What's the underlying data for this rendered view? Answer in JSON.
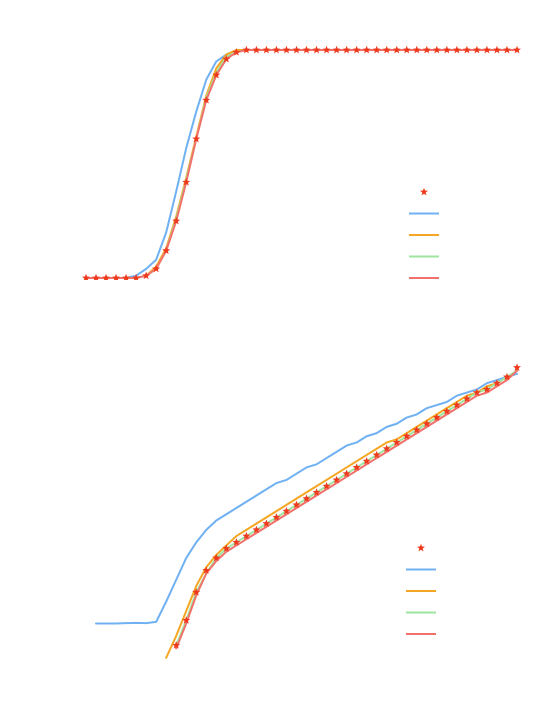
{
  "colors": {
    "reference_markers": "#ee3a1c",
    "series_blue": "#6fb1f2",
    "series_orange": "#f5a623",
    "series_green": "#9ee6a0",
    "series_red": "#f2706a",
    "background": "#ffffff"
  },
  "chart_data": [
    {
      "type": "line",
      "title": "",
      "xlabel": "",
      "ylabel": "",
      "xlim": [
        0,
        43
      ],
      "ylim": [
        0,
        1
      ],
      "grid": false,
      "legend": {
        "placement": "center-right",
        "entries": [
          {
            "marker": "star",
            "color": "#ee3a1c"
          },
          {
            "marker": "line",
            "color": "#6fb1f2"
          },
          {
            "marker": "line",
            "color": "#f5a623"
          },
          {
            "marker": "line",
            "color": "#9ee6a0"
          },
          {
            "marker": "line",
            "color": "#f2706a"
          }
        ]
      },
      "x": [
        0,
        1,
        2,
        3,
        4,
        5,
        6,
        7,
        8,
        9,
        10,
        11,
        12,
        13,
        14,
        15,
        16,
        17,
        18,
        19,
        20,
        21,
        22,
        23,
        24,
        25,
        26,
        27,
        28,
        29,
        30,
        31,
        32,
        33,
        34,
        35,
        36,
        37,
        38,
        39,
        40,
        41,
        42,
        43
      ],
      "series": [
        {
          "style": "stars",
          "color": "#ee3a1c",
          "values": [
            0,
            0,
            0,
            0,
            0,
            0,
            0.01,
            0.04,
            0.12,
            0.25,
            0.42,
            0.61,
            0.78,
            0.89,
            0.96,
            0.99,
            1,
            1,
            1,
            1,
            1,
            1,
            1,
            1,
            1,
            1,
            1,
            1,
            1,
            1,
            1,
            1,
            1,
            1,
            1,
            1,
            1,
            1,
            1,
            1,
            1,
            1,
            1,
            1
          ]
        },
        {
          "style": "line",
          "color": "#6fb1f2",
          "values": [
            0,
            0,
            0,
            0,
            0,
            0.01,
            0.04,
            0.08,
            0.2,
            0.38,
            0.57,
            0.73,
            0.87,
            0.95,
            0.98,
            1,
            1,
            1,
            1,
            1,
            1,
            1,
            1,
            1,
            1,
            1,
            1,
            1,
            1,
            1,
            1,
            1,
            1,
            1,
            1,
            1,
            1,
            1,
            1,
            1,
            1,
            1,
            1,
            1
          ]
        },
        {
          "style": "line",
          "color": "#f5a623",
          "values": [
            0,
            0,
            0,
            0,
            0,
            0,
            0.01,
            0.05,
            0.13,
            0.27,
            0.44,
            0.62,
            0.8,
            0.92,
            0.98,
            1,
            1,
            1,
            1,
            1,
            1,
            1,
            1,
            1,
            1,
            1,
            1,
            1,
            1,
            1,
            1,
            1,
            1,
            1,
            1,
            1,
            1,
            1,
            1,
            1,
            1,
            1,
            1,
            1
          ]
        },
        {
          "style": "line",
          "color": "#9ee6a0",
          "values": [
            0,
            0,
            0,
            0,
            0,
            0,
            0.01,
            0.04,
            0.12,
            0.26,
            0.43,
            0.61,
            0.79,
            0.9,
            0.97,
            0.99,
            1,
            1,
            1,
            1,
            1,
            1,
            1,
            1,
            1,
            1,
            1,
            1,
            1,
            1,
            1,
            1,
            1,
            1,
            1,
            1,
            1,
            1,
            1,
            1,
            1,
            1,
            1,
            1
          ]
        },
        {
          "style": "line",
          "color": "#f2706a",
          "values": [
            0,
            0,
            0,
            0,
            0,
            0,
            0.01,
            0.04,
            0.12,
            0.25,
            0.42,
            0.61,
            0.78,
            0.89,
            0.96,
            0.99,
            1,
            1,
            1,
            1,
            1,
            1,
            1,
            1,
            1,
            1,
            1,
            1,
            1,
            1,
            1,
            1,
            1,
            1,
            1,
            1,
            1,
            1,
            1,
            1,
            1,
            1,
            1,
            1
          ]
        }
      ]
    },
    {
      "type": "line",
      "title": "",
      "xlabel": "",
      "ylabel": "",
      "xlim": [
        0,
        43
      ],
      "ylim": [
        0,
        1
      ],
      "grid": false,
      "legend": {
        "placement": "center-right",
        "entries": [
          {
            "marker": "star",
            "color": "#ee3a1c"
          },
          {
            "marker": "line",
            "color": "#6fb1f2"
          },
          {
            "marker": "line",
            "color": "#f5a623"
          },
          {
            "marker": "line",
            "color": "#9ee6a0"
          },
          {
            "marker": "line",
            "color": "#f2706a"
          }
        ]
      },
      "series": [
        {
          "style": "stars",
          "color": "#ee3a1c",
          "x": [
            9,
            10,
            11,
            12,
            13,
            14,
            15,
            16,
            17,
            18,
            19,
            20,
            21,
            22,
            23,
            24,
            25,
            26,
            27,
            28,
            29,
            30,
            31,
            32,
            33,
            34,
            35,
            36,
            37,
            38,
            39,
            40,
            41,
            42,
            43
          ],
          "values": [
            0.06,
            0.14,
            0.23,
            0.3,
            0.34,
            0.37,
            0.39,
            0.41,
            0.43,
            0.45,
            0.47,
            0.49,
            0.51,
            0.53,
            0.55,
            0.57,
            0.59,
            0.61,
            0.63,
            0.65,
            0.67,
            0.69,
            0.71,
            0.73,
            0.75,
            0.77,
            0.79,
            0.81,
            0.83,
            0.85,
            0.87,
            0.88,
            0.9,
            0.92,
            0.95
          ]
        },
        {
          "style": "line",
          "color": "#6fb1f2",
          "x": [
            1,
            2,
            3,
            4,
            5,
            6,
            7,
            8,
            9,
            10,
            11,
            12,
            13,
            14,
            15,
            16,
            17,
            18,
            19,
            20,
            21,
            22,
            23,
            24,
            25,
            26,
            27,
            28,
            29,
            30,
            31,
            32,
            33,
            34,
            35,
            36,
            37,
            38,
            39,
            40,
            41,
            42,
            43
          ],
          "values": [
            0.13,
            0.13,
            0.13,
            0.131,
            0.132,
            0.131,
            0.135,
            0.2,
            0.27,
            0.34,
            0.39,
            0.43,
            0.46,
            0.48,
            0.5,
            0.52,
            0.54,
            0.56,
            0.58,
            0.59,
            0.61,
            0.63,
            0.64,
            0.66,
            0.68,
            0.7,
            0.71,
            0.73,
            0.74,
            0.76,
            0.77,
            0.79,
            0.8,
            0.82,
            0.83,
            0.84,
            0.86,
            0.87,
            0.88,
            0.9,
            0.91,
            0.92,
            0.93
          ]
        },
        {
          "style": "line",
          "color": "#f5a623",
          "x": [
            8,
            9,
            10,
            11,
            12,
            13,
            14,
            15,
            16,
            17,
            18,
            19,
            20,
            21,
            22,
            23,
            24,
            25,
            26,
            27,
            28,
            29,
            30,
            31,
            32,
            33,
            34,
            35,
            36,
            37,
            38,
            39,
            40,
            41,
            42,
            43
          ],
          "values": [
            0.02,
            0.09,
            0.17,
            0.25,
            0.31,
            0.35,
            0.38,
            0.41,
            0.43,
            0.45,
            0.47,
            0.49,
            0.51,
            0.53,
            0.55,
            0.57,
            0.59,
            0.61,
            0.63,
            0.65,
            0.67,
            0.69,
            0.71,
            0.72,
            0.74,
            0.76,
            0.78,
            0.8,
            0.82,
            0.84,
            0.86,
            0.87,
            0.89,
            0.9,
            0.92,
            0.94
          ]
        },
        {
          "style": "line",
          "color": "#9ee6a0",
          "x": [
            9,
            10,
            11,
            12,
            13,
            14,
            15,
            16,
            17,
            18,
            19,
            20,
            21,
            22,
            23,
            24,
            25,
            26,
            27,
            28,
            29,
            30,
            31,
            32,
            33,
            34,
            35,
            36,
            37,
            38,
            39,
            40,
            41,
            42,
            43
          ],
          "values": [
            0.06,
            0.14,
            0.23,
            0.29,
            0.34,
            0.37,
            0.39,
            0.41,
            0.43,
            0.45,
            0.47,
            0.49,
            0.51,
            0.53,
            0.55,
            0.57,
            0.59,
            0.61,
            0.63,
            0.65,
            0.67,
            0.69,
            0.71,
            0.73,
            0.75,
            0.77,
            0.79,
            0.81,
            0.83,
            0.85,
            0.87,
            0.88,
            0.9,
            0.92,
            0.94
          ]
        },
        {
          "style": "line",
          "color": "#f2706a",
          "x": [
            9,
            10,
            11,
            12,
            13,
            14,
            15,
            16,
            17,
            18,
            19,
            20,
            21,
            22,
            23,
            24,
            25,
            26,
            27,
            28,
            29,
            30,
            31,
            32,
            33,
            34,
            35,
            36,
            37,
            38,
            39,
            40,
            41,
            42,
            43
          ],
          "values": [
            0.05,
            0.13,
            0.22,
            0.29,
            0.33,
            0.36,
            0.38,
            0.4,
            0.42,
            0.44,
            0.46,
            0.48,
            0.5,
            0.52,
            0.54,
            0.56,
            0.58,
            0.6,
            0.62,
            0.64,
            0.66,
            0.68,
            0.7,
            0.72,
            0.74,
            0.76,
            0.78,
            0.8,
            0.82,
            0.84,
            0.86,
            0.87,
            0.89,
            0.91,
            0.94
          ]
        }
      ]
    }
  ]
}
